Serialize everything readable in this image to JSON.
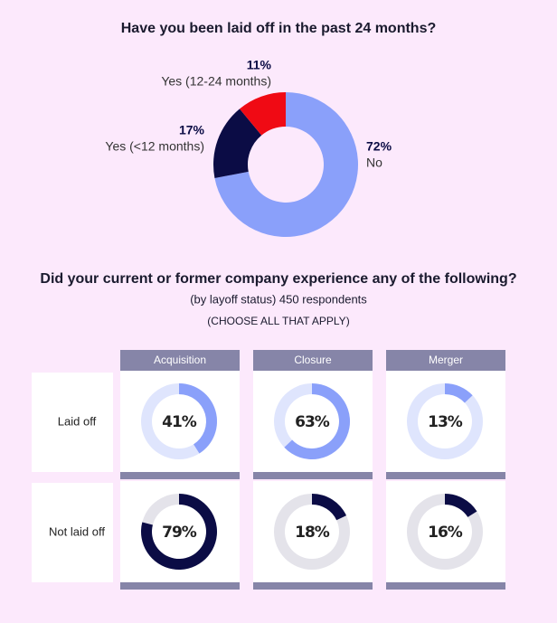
{
  "chart_data": [
    {
      "type": "donut",
      "title": "Have you been laid off in the past 24 months?",
      "categories": [
        "No",
        "Yes (<12 months)",
        "Yes (12-24 months)"
      ],
      "values": [
        72,
        17,
        11
      ],
      "value_labels": [
        "72%",
        "17%",
        "11%"
      ],
      "colors": [
        "#8aa0fa",
        "#0b0c45",
        "#f00a14"
      ]
    },
    {
      "type": "donut-grid",
      "title": "Did your current or former company experience any of the following?",
      "subtitle": "(by layoff status) 450 respondents",
      "note": "(CHOOSE ALL THAT APPLY)",
      "categories": [
        "Acquisition",
        "Closure",
        "Merger"
      ],
      "series": [
        {
          "name": "Laid off",
          "color": "#8aa0fa",
          "track_color": "#dfe5fd",
          "values": [
            41,
            63,
            13
          ],
          "value_labels": [
            "41%",
            "63%",
            "13%"
          ]
        },
        {
          "name": "Not laid off",
          "color": "#0b0c45",
          "track_color": "#e4e3ea",
          "values": [
            79,
            18,
            16
          ],
          "value_labels": [
            "79%",
            "18%",
            "16%"
          ]
        }
      ]
    }
  ]
}
